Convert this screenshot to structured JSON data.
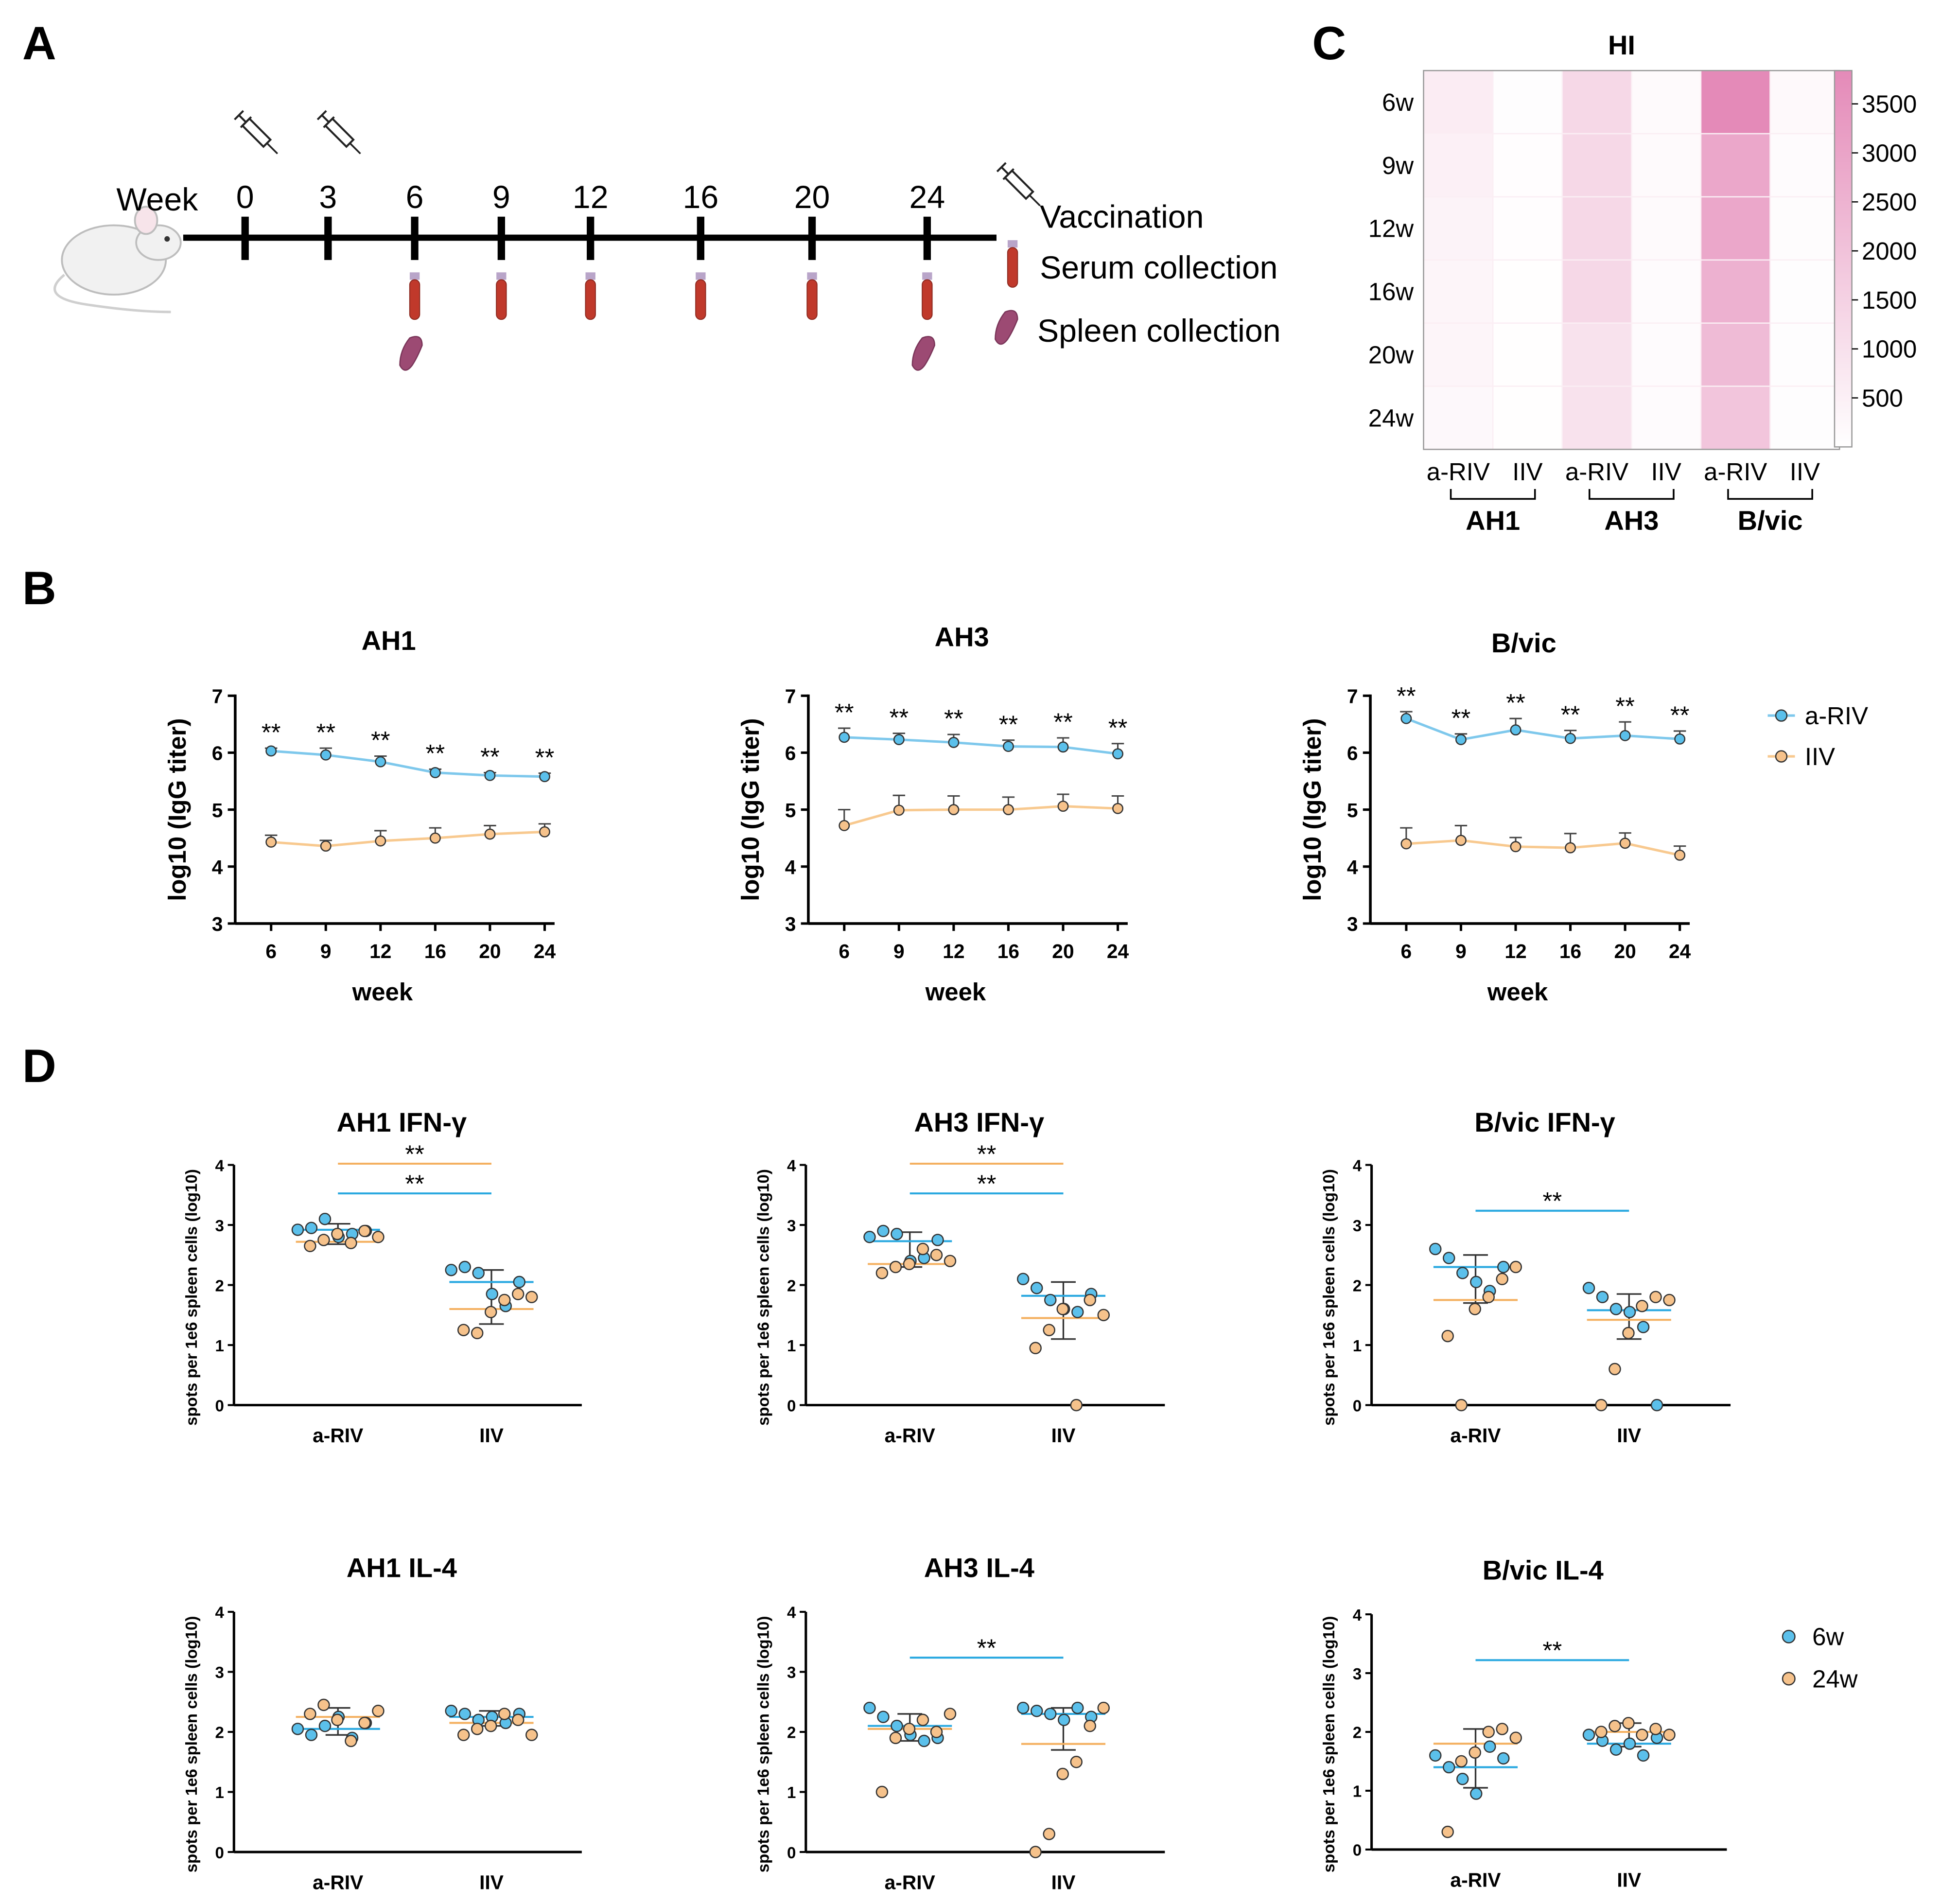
{
  "panel_letters": {
    "a": "A",
    "b": "B",
    "c": "C",
    "d": "D"
  },
  "timeline": {
    "week_label": "Week",
    "weeks": [
      "0",
      "3",
      "6",
      "9",
      "12",
      "16",
      "20",
      "24"
    ],
    "vaccination_weeks": [
      "0",
      "3"
    ],
    "serum_weeks": [
      "6",
      "9",
      "12",
      "16",
      "20",
      "24"
    ],
    "spleen_weeks": [
      "6",
      "24"
    ],
    "legend": {
      "vaccination": "Vaccination",
      "serum": "Serum collection",
      "spleen": "Spleen collection"
    }
  },
  "colors": {
    "a_riv": "#5bc0eb",
    "iiv": "#f6c28b",
    "line_blue": "#7ec8ec",
    "line_orange": "#f8c98f",
    "sig_orange": "#f4b060",
    "sig_blue": "#29a8e0",
    "heat_max": "#e48ab8"
  },
  "chart_data": [
    {
      "id": "hi_heatmap",
      "type": "heatmap",
      "title": "HI",
      "rows": [
        "6w",
        "9w",
        "12w",
        "16w",
        "20w",
        "24w"
      ],
      "columns": [
        "a-RIV",
        "IIV",
        "a-RIV",
        "IIV",
        "a-RIV",
        "IIV"
      ],
      "groups": [
        "AH1",
        "AH3",
        "B/vic"
      ],
      "values": [
        [
          640,
          80,
          1280,
          160,
          3840,
          200
        ],
        [
          480,
          60,
          1280,
          160,
          2880,
          120
        ],
        [
          400,
          60,
          1280,
          160,
          2880,
          100
        ],
        [
          320,
          40,
          1280,
          120,
          2560,
          80
        ],
        [
          320,
          40,
          960,
          120,
          2240,
          80
        ],
        [
          240,
          40,
          960,
          120,
          1920,
          80
        ]
      ],
      "colorbar_ticks": [
        500,
        1000,
        1500,
        2000,
        2500,
        3000,
        3500
      ],
      "colorbar_range": [
        0,
        3840
      ]
    },
    {
      "id": "igg_ah1",
      "type": "line",
      "title": "AH1",
      "x": [
        6,
        9,
        12,
        16,
        20,
        24
      ],
      "xlabel": "week",
      "ylabel": "log10 (IgG titer)",
      "ylim": [
        3,
        7
      ],
      "yticks": [
        3,
        4,
        5,
        6,
        7
      ],
      "series": [
        {
          "name": "a-RIV",
          "values": [
            6.03,
            5.96,
            5.84,
            5.65,
            5.6,
            5.58
          ],
          "err": [
            0.05,
            0.12,
            0.1,
            0.06,
            0.05,
            0.06
          ],
          "sig": [
            "**",
            "**",
            "**",
            "**",
            "**",
            "**"
          ]
        },
        {
          "name": "IIV",
          "values": [
            4.43,
            4.36,
            4.45,
            4.5,
            4.57,
            4.61
          ],
          "err": [
            0.12,
            0.1,
            0.18,
            0.18,
            0.15,
            0.14
          ]
        }
      ]
    },
    {
      "id": "igg_ah3",
      "type": "line",
      "title": "AH3",
      "x": [
        6,
        9,
        12,
        16,
        20,
        24
      ],
      "xlabel": "week",
      "ylabel": "log10 (IgG titer)",
      "ylim": [
        3,
        7
      ],
      "yticks": [
        3,
        4,
        5,
        6,
        7
      ],
      "series": [
        {
          "name": "a-RIV",
          "values": [
            6.27,
            6.23,
            6.18,
            6.11,
            6.1,
            5.98
          ],
          "err": [
            0.16,
            0.11,
            0.14,
            0.11,
            0.16,
            0.18
          ],
          "sig": [
            "**",
            "**",
            "**",
            "**",
            "**",
            "**"
          ]
        },
        {
          "name": "IIV",
          "values": [
            4.72,
            4.99,
            5.0,
            5.0,
            5.06,
            5.02
          ],
          "err": [
            0.28,
            0.26,
            0.24,
            0.22,
            0.21,
            0.22
          ]
        }
      ]
    },
    {
      "id": "igg_bvic",
      "type": "line",
      "title": "B/vic",
      "x": [
        6,
        9,
        12,
        16,
        20,
        24
      ],
      "xlabel": "week",
      "ylabel": "log10 (IgG titer)",
      "ylim": [
        3,
        7
      ],
      "yticks": [
        3,
        4,
        5,
        6,
        7
      ],
      "series": [
        {
          "name": "a-RIV",
          "values": [
            6.6,
            6.23,
            6.4,
            6.25,
            6.3,
            6.24
          ],
          "err": [
            0.12,
            0.1,
            0.2,
            0.14,
            0.24,
            0.14
          ],
          "sig": [
            "**",
            "**",
            "**",
            "**",
            "**",
            "**"
          ]
        },
        {
          "name": "IIV",
          "values": [
            4.4,
            4.46,
            4.35,
            4.33,
            4.41,
            4.2
          ],
          "err": [
            0.28,
            0.26,
            0.16,
            0.25,
            0.18,
            0.16
          ]
        }
      ]
    },
    {
      "id": "elispot_ah1_ifn",
      "type": "scatter",
      "title": "AH1 IFN-γ",
      "categories": [
        "a-RIV",
        "IIV"
      ],
      "ylabel": "spots per 1e6 spleen cells (log10)",
      "ylim": [
        0,
        4
      ],
      "yticks": [
        0,
        1,
        2,
        3,
        4
      ],
      "points": [
        {
          "group": "a-RIV",
          "w6": [
            2.92,
            2.95,
            3.1,
            2.8,
            2.85,
            2.9
          ],
          "w24": [
            2.65,
            2.75,
            2.85,
            2.7,
            2.9,
            2.8
          ]
        },
        {
          "group": "IIV",
          "w6": [
            2.25,
            2.3,
            2.2,
            1.85,
            1.65,
            2.05
          ],
          "w24": [
            1.25,
            1.2,
            1.55,
            1.75,
            1.85,
            1.8
          ]
        }
      ],
      "means": {
        "a-RIV": {
          "w6": 2.92,
          "w24": 2.72
        },
        "IIV": {
          "w6": 2.05,
          "w24": 1.6
        }
      },
      "sd": {
        "a-RIV": [
          2.68,
          3.02
        ],
        "IIV": [
          1.35,
          2.25
        ]
      },
      "sig": [
        {
          "color": "orange",
          "label": "**"
        },
        {
          "color": "blue",
          "label": "**"
        }
      ]
    },
    {
      "id": "elispot_ah3_ifn",
      "type": "scatter",
      "title": "AH3 IFN-γ",
      "categories": [
        "a-RIV",
        "IIV"
      ],
      "ylabel": "spots per 1e6 spleen cells (log10)",
      "ylim": [
        0,
        4
      ],
      "yticks": [
        0,
        1,
        2,
        3,
        4
      ],
      "points": [
        {
          "group": "a-RIV",
          "w6": [
            2.8,
            2.9,
            2.85,
            2.4,
            2.45,
            2.75
          ],
          "w24": [
            2.2,
            2.3,
            2.35,
            2.6,
            2.5,
            2.4
          ]
        },
        {
          "group": "IIV",
          "w6": [
            2.1,
            1.95,
            1.75,
            1.6,
            1.55,
            1.85
          ],
          "w24": [
            0.95,
            1.25,
            1.6,
            0.0,
            1.75,
            1.5
          ]
        }
      ],
      "means": {
        "a-RIV": {
          "w6": 2.73,
          "w24": 2.35
        },
        "IIV": {
          "w6": 1.82,
          "w24": 1.45
        }
      },
      "sd": {
        "a-RIV": [
          2.3,
          2.88
        ],
        "IIV": [
          1.1,
          2.05
        ]
      },
      "sig": [
        {
          "color": "orange",
          "label": "**"
        },
        {
          "color": "blue",
          "label": "**"
        }
      ]
    },
    {
      "id": "elispot_bvic_ifn",
      "type": "scatter",
      "title": "B/vic IFN-γ",
      "categories": [
        "a-RIV",
        "IIV"
      ],
      "ylabel": "spots per 1e6 spleen cells (log10)",
      "ylim": [
        0,
        4
      ],
      "yticks": [
        0,
        1,
        2,
        3,
        4
      ],
      "points": [
        {
          "group": "a-RIV",
          "w6": [
            2.6,
            2.45,
            2.2,
            2.05,
            1.9,
            2.3
          ],
          "w24": [
            1.15,
            0.0,
            1.6,
            1.8,
            2.1,
            2.3
          ]
        },
        {
          "group": "IIV",
          "w6": [
            1.95,
            1.8,
            1.6,
            1.55,
            1.3,
            0.0
          ],
          "w24": [
            0.0,
            0.6,
            1.2,
            1.65,
            1.8,
            1.75
          ]
        }
      ],
      "means": {
        "a-RIV": {
          "w6": 2.3,
          "w24": 1.75
        },
        "IIV": {
          "w6": 1.58,
          "w24": 1.42
        }
      },
      "sd": {
        "a-RIV": [
          1.7,
          2.5
        ],
        "IIV": [
          1.1,
          1.85
        ]
      },
      "sig": [
        {
          "color": "blue",
          "label": "**"
        }
      ]
    },
    {
      "id": "elispot_ah1_il4",
      "type": "scatter",
      "title": "AH1 IL-4",
      "categories": [
        "a-RIV",
        "IIV"
      ],
      "ylabel": "spots per 1e6 spleen cells (log10)",
      "ylim": [
        0,
        4
      ],
      "yticks": [
        0,
        1,
        2,
        3,
        4
      ],
      "points": [
        {
          "group": "a-RIV",
          "w6": [
            2.05,
            1.95,
            2.1,
            2.25,
            1.9,
            2.15
          ],
          "w24": [
            2.3,
            2.45,
            2.2,
            1.85,
            2.15,
            2.35
          ]
        },
        {
          "group": "IIV",
          "w6": [
            2.35,
            2.3,
            2.2,
            2.25,
            2.15,
            2.3
          ],
          "w24": [
            1.95,
            2.05,
            2.1,
            2.3,
            2.2,
            1.95
          ]
        }
      ],
      "means": {
        "a-RIV": {
          "w6": 2.05,
          "w24": 2.25
        },
        "IIV": {
          "w6": 2.25,
          "w24": 2.15
        }
      },
      "sd": {
        "a-RIV": [
          1.95,
          2.4
        ],
        "IIV": [
          2.1,
          2.35
        ]
      },
      "sig": []
    },
    {
      "id": "elispot_ah3_il4",
      "type": "scatter",
      "title": "AH3 IL-4",
      "categories": [
        "a-RIV",
        "IIV"
      ],
      "ylabel": "spots per 1e6 spleen cells (log10)",
      "ylim": [
        0,
        4
      ],
      "yticks": [
        0,
        1,
        2,
        3,
        4
      ],
      "points": [
        {
          "group": "a-RIV",
          "w6": [
            2.4,
            2.25,
            2.1,
            1.95,
            1.85,
            1.9
          ],
          "w24": [
            1.0,
            1.9,
            2.05,
            2.2,
            2.0,
            2.3
          ]
        },
        {
          "group": "IIV",
          "w6": [
            2.4,
            2.35,
            2.3,
            2.2,
            2.4,
            2.25
          ],
          "w24": [
            0.0,
            0.3,
            1.3,
            1.5,
            2.1,
            2.4
          ]
        }
      ],
      "means": {
        "a-RIV": {
          "w6": 2.1,
          "w24": 2.05
        },
        "IIV": {
          "w6": 2.3,
          "w24": 1.8
        }
      },
      "sd": {
        "a-RIV": [
          1.85,
          2.3
        ],
        "IIV": [
          1.7,
          2.4
        ]
      },
      "sig": [
        {
          "color": "blue",
          "label": "**"
        }
      ]
    },
    {
      "id": "elispot_bvic_il4",
      "type": "scatter",
      "title": "B/vic IL-4",
      "categories": [
        "a-RIV",
        "IIV"
      ],
      "ylabel": "spots per 1e6 spleen cells (log10)",
      "ylim": [
        0,
        4
      ],
      "yticks": [
        0,
        1,
        2,
        3,
        4
      ],
      "points": [
        {
          "group": "a-RIV",
          "w6": [
            1.6,
            1.4,
            1.2,
            0.95,
            1.75,
            1.55
          ],
          "w24": [
            0.3,
            1.5,
            1.65,
            2.0,
            2.05,
            1.9
          ]
        },
        {
          "group": "IIV",
          "w6": [
            1.95,
            1.85,
            1.7,
            1.8,
            1.6,
            1.9
          ],
          "w24": [
            2.0,
            2.1,
            2.15,
            1.95,
            2.05,
            1.95
          ]
        }
      ],
      "means": {
        "a-RIV": {
          "w6": 1.4,
          "w24": 1.8
        },
        "IIV": {
          "w6": 1.8,
          "w24": 2.0
        }
      },
      "sd": {
        "a-RIV": [
          1.05,
          2.05
        ],
        "IIV": [
          1.75,
          2.15
        ]
      },
      "sig": [
        {
          "color": "blue",
          "label": "**"
        }
      ]
    }
  ],
  "legends": {
    "igg": [
      {
        "label": "a-RIV"
      },
      {
        "label": "IIV"
      }
    ],
    "elispot": [
      {
        "label": "6w"
      },
      {
        "label": "24w"
      }
    ]
  }
}
